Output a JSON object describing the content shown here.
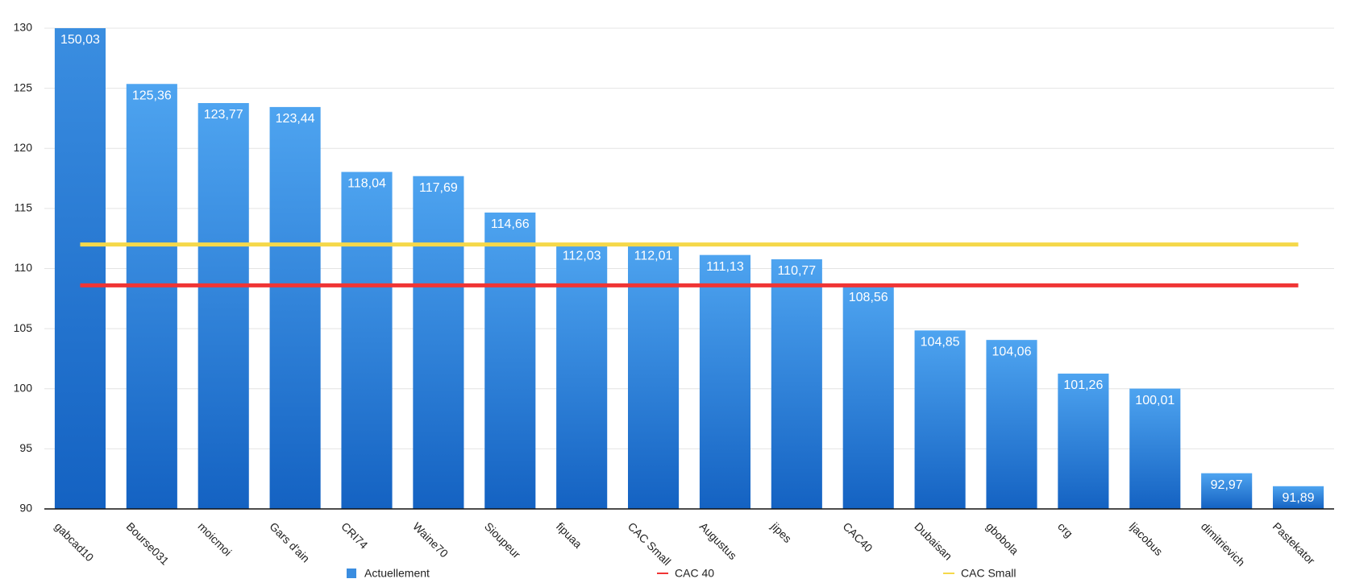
{
  "chart_data": {
    "type": "bar",
    "categories": [
      "gabcad10",
      "Bourse031",
      "moicmoi",
      "Gars d'ain",
      "CRI74",
      "Waine70",
      "Sioupeur",
      "fipuaa",
      "CAC Small",
      "Augustus",
      "jipes",
      "CAC40",
      "Dubaisan",
      "gbobola",
      "crg",
      "ljacobus",
      "dimitrievich",
      "Pastekator"
    ],
    "series": [
      {
        "name": "Actuellement",
        "type": "bar",
        "color": "#3a8de0",
        "values": [
          150.03,
          125.36,
          123.77,
          123.44,
          118.04,
          117.69,
          114.66,
          112.03,
          112.01,
          111.13,
          110.77,
          108.56,
          104.85,
          104.06,
          101.26,
          100.01,
          92.97,
          91.89
        ],
        "value_labels": [
          "150,03",
          "125,36",
          "123,77",
          "123,44",
          "118,04",
          "117,69",
          "114,66",
          "112,03",
          "112,01",
          "111,13",
          "110,77",
          "108,56",
          "104,85",
          "104,06",
          "101,26",
          "100,01",
          "92,97",
          "91,89"
        ]
      },
      {
        "name": "CAC 40",
        "type": "line",
        "color": "#f03535",
        "values": [
          108.6,
          108.6,
          108.6,
          108.6,
          108.6,
          108.6,
          108.6,
          108.6,
          108.6,
          108.6,
          108.6,
          108.6,
          108.6,
          108.6,
          108.6,
          108.6,
          108.6,
          108.6
        ]
      },
      {
        "name": "CAC Small",
        "type": "line",
        "color": "#f5d84a",
        "values": [
          112,
          112,
          112,
          112,
          112,
          112,
          112,
          112,
          112,
          112,
          112,
          112,
          112,
          112,
          112,
          112,
          112,
          112
        ]
      }
    ],
    "ylim": [
      90,
      130
    ],
    "yticks": [
      90,
      95,
      100,
      105,
      110,
      115,
      120,
      125,
      130
    ],
    "grid": true
  }
}
